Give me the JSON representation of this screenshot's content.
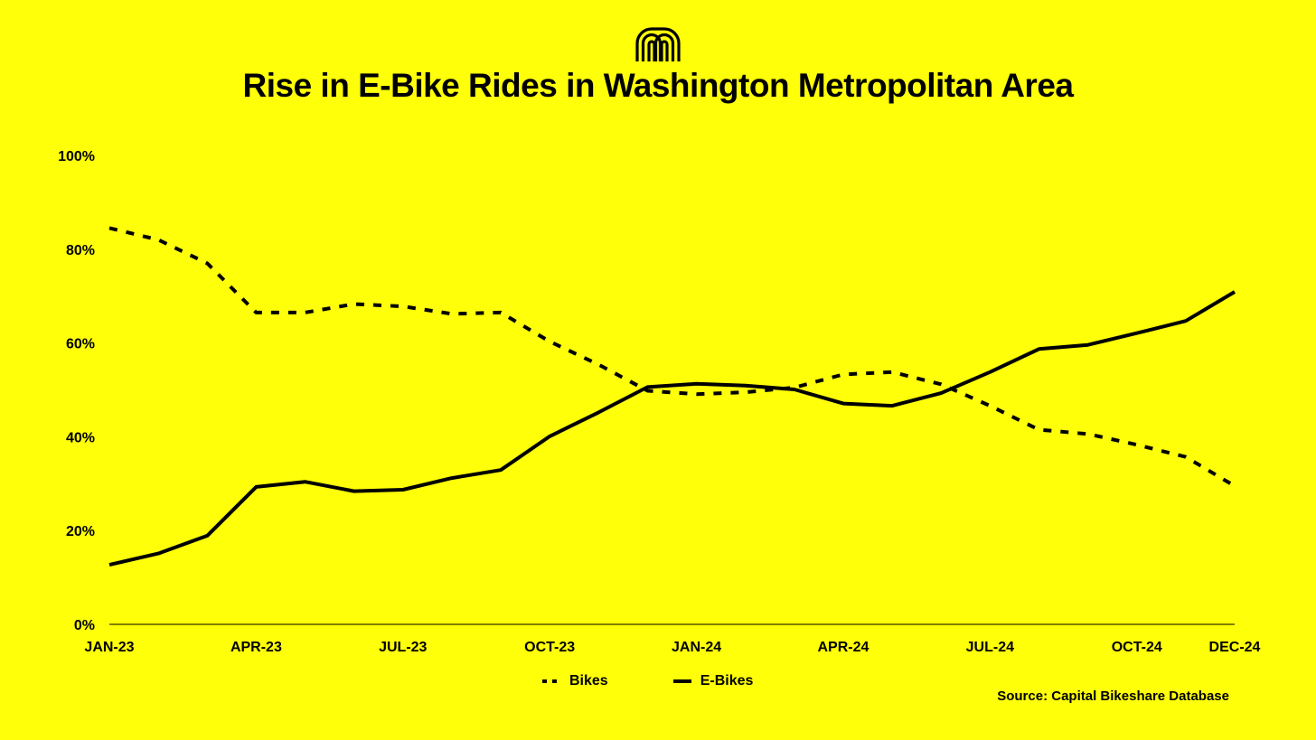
{
  "header": {
    "logo_icon": "capital-bikeshare-logo-icon",
    "title": "Rise in E-Bike Rides in Washington Metropolitan Area"
  },
  "footer": {
    "source": "Source: Capital Bikeshare Database"
  },
  "colors": {
    "background": "#FFFF09",
    "line": "#000000"
  },
  "chart_data": {
    "type": "line",
    "title": "Rise in E-Bike Rides in Washington Metropolitan Area",
    "xlabel": "",
    "ylabel": "",
    "ylim": [
      0,
      100
    ],
    "y_ticks": [
      "0%",
      "20%",
      "40%",
      "60%",
      "80%",
      "100%"
    ],
    "x": [
      "JAN-23",
      "FEB-23",
      "MAR-23",
      "APR-23",
      "MAY-23",
      "JUN-23",
      "JUL-23",
      "AUG-23",
      "SEP-23",
      "OCT-23",
      "NOV-23",
      "DEC-23",
      "JAN-24",
      "FEB-24",
      "MAR-24",
      "APR-24",
      "MAY-24",
      "JUN-24",
      "JUL-24",
      "AUG-24",
      "SEP-24",
      "OCT-24",
      "NOV-24",
      "DEC-24"
    ],
    "x_tick_labels": [
      {
        "index": 0,
        "label": "JAN-23"
      },
      {
        "index": 3,
        "label": "APR-23"
      },
      {
        "index": 6,
        "label": "JUL-23"
      },
      {
        "index": 9,
        "label": "OCT-23"
      },
      {
        "index": 12,
        "label": "JAN-24"
      },
      {
        "index": 15,
        "label": "APR-24"
      },
      {
        "index": 18,
        "label": "JUL-24"
      },
      {
        "index": 21,
        "label": "OCT-24"
      },
      {
        "index": 23,
        "label": "DEC-24"
      }
    ],
    "grid": false,
    "legend_position": "bottom-center",
    "series": [
      {
        "name": "Bikes",
        "style": "dashed",
        "values": [
          84.5,
          82,
          77,
          66.5,
          66.5,
          68.3,
          67.8,
          66.2,
          66.5,
          60.3,
          55.4,
          49.8,
          49.1,
          49.5,
          50.5,
          53.3,
          53.8,
          51.2,
          46.6,
          41.5,
          40.6,
          38.3,
          35.7,
          29.5
        ]
      },
      {
        "name": "E-Bikes",
        "style": "solid",
        "values": [
          12.7,
          15.1,
          18.9,
          29.3,
          30.4,
          28.4,
          28.7,
          31.2,
          32.9,
          40.1,
          45.2,
          50.6,
          51.3,
          50.9,
          50.1,
          47.1,
          46.6,
          49.3,
          53.8,
          58.7,
          59.6,
          62.1,
          64.7,
          70.9
        ]
      }
    ]
  }
}
